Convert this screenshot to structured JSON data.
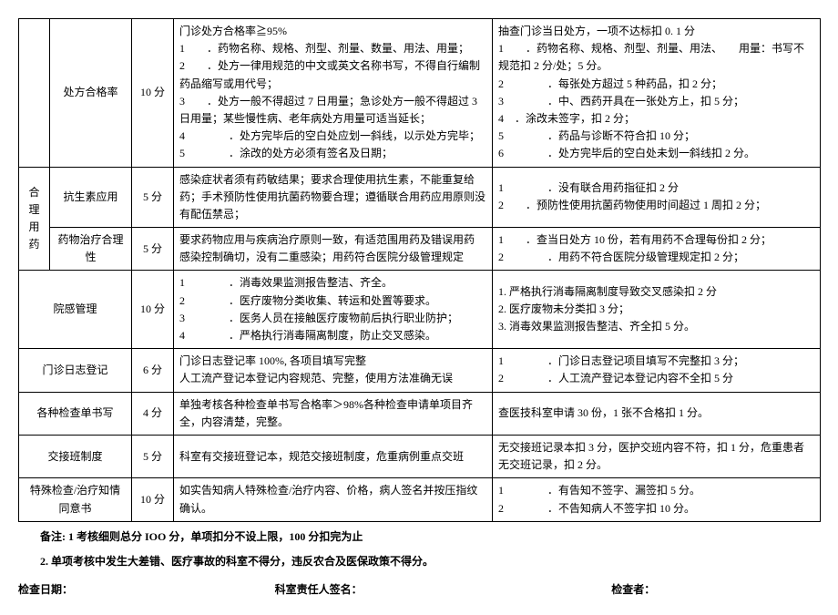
{
  "table": {
    "rows": [
      {
        "cat": "",
        "item": "处方合格率",
        "score": "10 分",
        "req_lines": [
          "门诊处方合格率≧95%",
          "1　　．药物名称、规格、剂型、剂量、数量、用法、用量；",
          "2　　．处方一律用规范的中文或英文名称书写，不得自行编制药品缩写或用代号；",
          "3　　．处方一般不得超过 7 日用量；急诊处方一般不得超过 3 日用量；某些慢性病、老年病处方用量可适当延长；",
          "4　　　　．处方完毕后的空白处应划一斜线，以示处方完毕；",
          "5　　　　．涂改的处方必须有签名及日期；"
        ],
        "std_lines": [
          "抽查门诊当日处方，一项不达标扣 0. 1 分",
          "1　　．药物名称、规格、剂型、剂量、用法、　　用量：书写不规范扣 2 分/处；5 分。",
          "2　　　　．每张处方超过 5 种药品，扣 2 分；",
          "3　　　　．中、西药开具在一张处方上，扣 5 分；",
          "4　．涂改未签字，扣 2 分；",
          "5　　　　．药品与诊断不符合扣 10 分；",
          "6　　　　．处方完毕后的空白处未划一斜线扣 2 分。"
        ]
      },
      {
        "cat": "合理用药",
        "cat_rowspan": 2,
        "item": "抗生素应用",
        "score": "5 分",
        "req_lines": [
          "感染症状者须有药敏结果；要求合理使用抗生素，不能重复给药；手术预防性使用抗菌药物要合理；遵循联合用药应用原则没有配伍禁忌；"
        ],
        "std_lines": [
          "1　　　　．没有联合用药指征扣 2 分",
          "2　　．预防性使用抗菌药物使用时间超过 1 周扣 2 分；"
        ]
      },
      {
        "item": "药物治疗合理性",
        "score": "5 分",
        "req_lines": [
          "要求药物应用与疾病治疗原则一致，有适范围用药及错误用药 感染控制确切，没有二重感染；用药符合医院分级管理规定"
        ],
        "std_lines": [
          "1　　．查当日处方 10 份，若有用药不合理每份扣 2 分；",
          "2　　　　．用药不符合医院分级管理规定扣 2 分；"
        ]
      },
      {
        "cat_colspan": 2,
        "item": "院感管理",
        "score": "10 分",
        "req_lines": [
          "1　　　　．消毒效果监测报告整洁、齐全。",
          "2　　　　．医疗废物分类收集、转运和处置等要求。",
          "3　　　　．医务人员在接触医疗废物前后执行职业防护；",
          "4　　　　．严格执行消毒隔离制度，防止交叉感染。"
        ],
        "std_lines": [
          "1. 严格执行消毒隔离制度导致交叉感染扣 2 分",
          "2. 医疗废物未分类扣 3 分；",
          "3. 消毒效果监测报告整洁、齐全扣 5 分。"
        ]
      },
      {
        "cat_colspan": 2,
        "item": "门诊日志登记",
        "score": "6 分",
        "req_lines": [
          "门诊日志登记率 100%, 各项目填写完整",
          "人工流产登记本登记内容规范、完整，使用方法准确无误"
        ],
        "std_lines": [
          "1　　　　．门诊日志登记项目填写不完整扣 3 分；",
          "2　　　　．人工流产登记本登记内容不全扣 5 分"
        ]
      },
      {
        "cat_colspan": 2,
        "item": "各种检查单书写",
        "score": "4 分",
        "req_lines": [
          "单独考核各种检查单书写合格率＞98%各种检查申请单项目齐全，内容清楚，完整。"
        ],
        "std_lines": [
          "查医技科室申请 30 份，1 张不合格扣 1 分。"
        ]
      },
      {
        "cat_colspan": 2,
        "item": "交接班制度",
        "score": "5 分",
        "req_lines": [
          "科室有交接班登记本，规范交接班制度，危重病例重点交班"
        ],
        "std_lines": [
          "无交接班记录本扣 3 分，医护交班内容不符，扣 1 分，危重患者无交班记录，扣 2 分。"
        ]
      },
      {
        "cat_colspan": 2,
        "item": "特殊检查/治疗知情同意书",
        "score": "10 分",
        "req_lines": [
          "如实告知病人特殊检查/治疗内容、价格，病人签名并按压指纹确认。"
        ],
        "std_lines": [
          "1　　　　．有告知不签字、漏签扣 5 分。",
          "2　　　　．不告知病人不签字扣 10 分。"
        ]
      }
    ]
  },
  "notes": [
    "备注: 1 考核细则总分 IOO 分，单项扣分不设上限，100 分扣完为止",
    "2. 单项考核中发生大差错、医疗事故的科室不得分，违反农合及医保政策不得分。"
  ],
  "signatures": {
    "left": "检查日期：",
    "mid": "科室责任人签名：",
    "right": "检查者："
  }
}
